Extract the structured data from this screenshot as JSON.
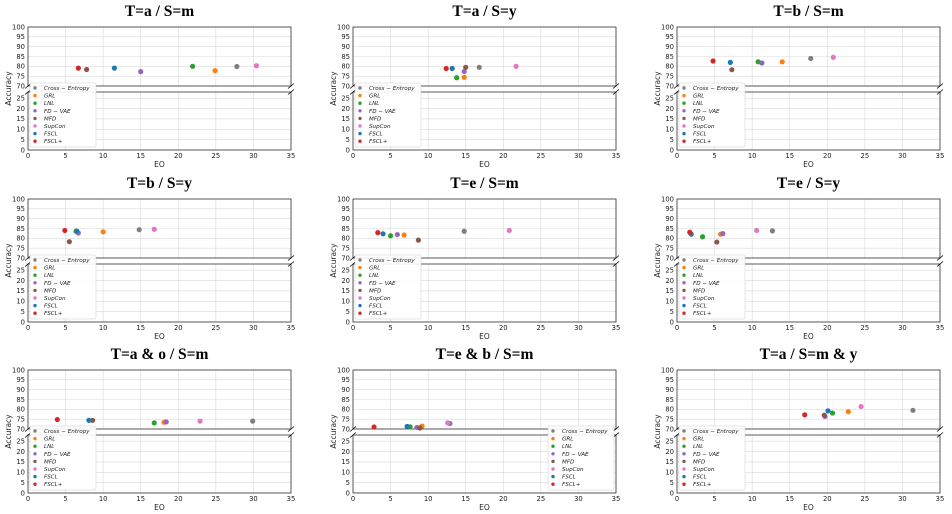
{
  "chart_data": [
    {
      "type": "scatter",
      "title": "T=a / S=m",
      "xlabel": "EO",
      "ylabel": "Accuracy",
      "xlim": [
        0,
        35
      ],
      "xticks": [
        "0",
        "5",
        "10",
        "15",
        "20",
        "25",
        "30",
        "35"
      ],
      "ytick_upper": [
        "70",
        "75",
        "80",
        "85",
        "90",
        "95",
        "100"
      ],
      "ytick_lower": [
        "0",
        "5",
        "10",
        "15",
        "20",
        "25"
      ],
      "legend_position": "lower-left",
      "points": [
        {
          "name": "Cross-Entropy",
          "eo": 27.8,
          "acc": 79.9
        },
        {
          "name": "GRL",
          "eo": 24.9,
          "acc": 77.8
        },
        {
          "name": "LNL",
          "eo": 21.9,
          "acc": 80.0
        },
        {
          "name": "FD-VAE",
          "eo": 15.0,
          "acc": 77.3
        },
        {
          "name": "MFD",
          "eo": 7.8,
          "acc": 78.4
        },
        {
          "name": "SupCon",
          "eo": 30.4,
          "acc": 80.3
        },
        {
          "name": "FSCL",
          "eo": 11.5,
          "acc": 79.1
        },
        {
          "name": "FSCL+",
          "eo": 6.7,
          "acc": 79.1
        }
      ]
    },
    {
      "type": "scatter",
      "title": "T=a / S=y",
      "xlabel": "EO",
      "ylabel": "Accuracy",
      "xlim": [
        0,
        35
      ],
      "xticks": [
        "0",
        "5",
        "10",
        "15",
        "20",
        "25",
        "30",
        "35"
      ],
      "ytick_upper": [
        "70",
        "75",
        "80",
        "85",
        "90",
        "95",
        "100"
      ],
      "ytick_lower": [
        "0",
        "5",
        "10",
        "15",
        "20",
        "25"
      ],
      "legend_position": "lower-left",
      "points": [
        {
          "name": "Cross-Entropy",
          "eo": 16.8,
          "acc": 79.5
        },
        {
          "name": "GRL",
          "eo": 14.8,
          "acc": 74.4
        },
        {
          "name": "LNL",
          "eo": 13.8,
          "acc": 74.2
        },
        {
          "name": "FD-VAE",
          "eo": 14.8,
          "acc": 77.4
        },
        {
          "name": "MFD",
          "eo": 15.0,
          "acc": 79.5
        },
        {
          "name": "SupCon",
          "eo": 21.7,
          "acc": 80.0
        },
        {
          "name": "FSCL",
          "eo": 13.2,
          "acc": 78.9
        },
        {
          "name": "FSCL+",
          "eo": 12.4,
          "acc": 78.9
        }
      ]
    },
    {
      "type": "scatter",
      "title": "T=b / S=m",
      "xlabel": "EO",
      "ylabel": "Accuracy",
      "xlim": [
        0,
        35
      ],
      "xticks": [
        "0",
        "5",
        "10",
        "15",
        "20",
        "25",
        "30",
        "35"
      ],
      "ytick_upper": [
        "70",
        "75",
        "80",
        "85",
        "90",
        "95",
        "100"
      ],
      "ytick_lower": [
        "0",
        "5",
        "10",
        "15",
        "20",
        "25"
      ],
      "legend_position": "lower-left",
      "points": [
        {
          "name": "Cross-Entropy",
          "eo": 17.8,
          "acc": 84.0
        },
        {
          "name": "GRL",
          "eo": 14.0,
          "acc": 82.3
        },
        {
          "name": "LNL",
          "eo": 10.8,
          "acc": 82.3
        },
        {
          "name": "FD-VAE",
          "eo": 11.3,
          "acc": 81.7
        },
        {
          "name": "MFD",
          "eo": 7.3,
          "acc": 78.3
        },
        {
          "name": "SupCon",
          "eo": 20.8,
          "acc": 84.6
        },
        {
          "name": "FSCL",
          "eo": 7.1,
          "acc": 82.0
        },
        {
          "name": "FSCL+",
          "eo": 4.8,
          "acc": 82.7
        }
      ]
    },
    {
      "type": "scatter",
      "title": "T=b / S=y",
      "xlabel": "EO",
      "ylabel": "Accuracy",
      "xlim": [
        0,
        35
      ],
      "xticks": [
        "0",
        "5",
        "10",
        "15",
        "20",
        "25",
        "30",
        "35"
      ],
      "ytick_upper": [
        "70",
        "75",
        "80",
        "85",
        "90",
        "95",
        "100"
      ],
      "ytick_lower": [
        "0",
        "5",
        "10",
        "15",
        "20",
        "25"
      ],
      "legend_position": "lower-left",
      "points": [
        {
          "name": "Cross-Entropy",
          "eo": 14.8,
          "acc": 84.4
        },
        {
          "name": "GRL",
          "eo": 10.0,
          "acc": 83.3
        },
        {
          "name": "LNL",
          "eo": 6.4,
          "acc": 83.6
        },
        {
          "name": "FD-VAE",
          "eo": 6.7,
          "acc": 82.7
        },
        {
          "name": "MFD",
          "eo": 5.5,
          "acc": 78.3
        },
        {
          "name": "SupCon",
          "eo": 16.8,
          "acc": 84.6
        },
        {
          "name": "FSCL",
          "eo": 6.5,
          "acc": 83.7
        },
        {
          "name": "FSCL+",
          "eo": 4.9,
          "acc": 84.0
        }
      ]
    },
    {
      "type": "scatter",
      "title": "T=e / S=m",
      "xlabel": "EO",
      "ylabel": "Accuracy",
      "xlim": [
        0,
        35
      ],
      "xticks": [
        "0",
        "5",
        "10",
        "15",
        "20",
        "25",
        "30",
        "35"
      ],
      "ytick_upper": [
        "70",
        "75",
        "80",
        "85",
        "90",
        "95",
        "100"
      ],
      "ytick_lower": [
        "0",
        "5",
        "10",
        "15",
        "20",
        "25"
      ],
      "legend_position": "lower-left",
      "points": [
        {
          "name": "Cross-Entropy",
          "eo": 14.8,
          "acc": 83.6
        },
        {
          "name": "GRL",
          "eo": 6.8,
          "acc": 81.7
        },
        {
          "name": "LNL",
          "eo": 5.0,
          "acc": 81.3
        },
        {
          "name": "FD-VAE",
          "eo": 5.9,
          "acc": 81.9
        },
        {
          "name": "MFD",
          "eo": 8.7,
          "acc": 79.1
        },
        {
          "name": "SupCon",
          "eo": 20.8,
          "acc": 84.0
        },
        {
          "name": "FSCL",
          "eo": 4.0,
          "acc": 82.3
        },
        {
          "name": "FSCL+",
          "eo": 3.3,
          "acc": 82.9
        }
      ]
    },
    {
      "type": "scatter",
      "title": "T=e / S=y",
      "xlabel": "EO",
      "ylabel": "Accuracy",
      "xlim": [
        0,
        35
      ],
      "xticks": [
        "0",
        "5",
        "10",
        "15",
        "20",
        "25",
        "30",
        "35"
      ],
      "ytick_upper": [
        "70",
        "75",
        "80",
        "85",
        "90",
        "95",
        "100"
      ],
      "ytick_lower": [
        "0",
        "5",
        "10",
        "15",
        "20",
        "25"
      ],
      "legend_position": "lower-left",
      "points": [
        {
          "name": "Cross-Entropy",
          "eo": 12.7,
          "acc": 83.8
        },
        {
          "name": "GRL",
          "eo": 5.8,
          "acc": 82.1
        },
        {
          "name": "LNL",
          "eo": 3.4,
          "acc": 80.8
        },
        {
          "name": "FD-VAE",
          "eo": 6.1,
          "acc": 82.4
        },
        {
          "name": "MFD",
          "eo": 5.3,
          "acc": 78.1
        },
        {
          "name": "SupCon",
          "eo": 10.6,
          "acc": 84.0
        },
        {
          "name": "FSCL",
          "eo": 1.9,
          "acc": 82.1
        },
        {
          "name": "FSCL+",
          "eo": 1.7,
          "acc": 83.1
        }
      ]
    },
    {
      "type": "scatter",
      "title": "T=a & o / S=m",
      "xlabel": "EO",
      "ylabel": "Accuracy",
      "xlim": [
        0,
        35
      ],
      "xticks": [
        "0",
        "5",
        "10",
        "15",
        "20",
        "25",
        "30",
        "35"
      ],
      "ytick_upper": [
        "70",
        "75",
        "80",
        "85",
        "90",
        "95",
        "100"
      ],
      "ytick_lower": [
        "0",
        "5",
        "10",
        "15",
        "20",
        "25"
      ],
      "legend_position": "lower-left",
      "points": [
        {
          "name": "Cross-Entropy",
          "eo": 29.9,
          "acc": 74.0
        },
        {
          "name": "GRL",
          "eo": 18.1,
          "acc": 73.4
        },
        {
          "name": "LNL",
          "eo": 16.8,
          "acc": 73.1
        },
        {
          "name": "FD-VAE",
          "eo": 18.4,
          "acc": 73.6
        },
        {
          "name": "MFD",
          "eo": 8.6,
          "acc": 74.4
        },
        {
          "name": "SupCon",
          "eo": 22.9,
          "acc": 74.0
        },
        {
          "name": "FSCL",
          "eo": 8.1,
          "acc": 74.4
        },
        {
          "name": "FSCL+",
          "eo": 3.9,
          "acc": 74.8
        }
      ]
    },
    {
      "type": "scatter",
      "title": "T=e & b / S=m",
      "xlabel": "EO",
      "ylabel": "Accuracy",
      "xlim": [
        0,
        35
      ],
      "xticks": [
        "0",
        "5",
        "10",
        "15",
        "20",
        "25",
        "30",
        "35"
      ],
      "ytick_upper": [
        "70",
        "75",
        "80",
        "85",
        "90",
        "95",
        "100"
      ],
      "ytick_lower": [
        "0",
        "5",
        "10",
        "15",
        "20",
        "25"
      ],
      "legend_position": "lower-right",
      "points": [
        {
          "name": "Cross-Entropy",
          "eo": 12.9,
          "acc": 72.8
        },
        {
          "name": "GRL",
          "eo": 9.2,
          "acc": 71.5
        },
        {
          "name": "LNL",
          "eo": 7.6,
          "acc": 71.1
        },
        {
          "name": "FD-VAE",
          "eo": 8.5,
          "acc": 70.8
        },
        {
          "name": "MFD",
          "eo": 8.9,
          "acc": 70.5
        },
        {
          "name": "SupCon",
          "eo": 12.6,
          "acc": 73.1
        },
        {
          "name": "FSCL",
          "eo": 7.2,
          "acc": 71.3
        },
        {
          "name": "FSCL+",
          "eo": 2.8,
          "acc": 71.0
        }
      ]
    },
    {
      "type": "scatter",
      "title": "T=a / S=m & y",
      "xlabel": "EO",
      "ylabel": "Accuracy",
      "xlim": [
        0,
        35
      ],
      "xticks": [
        "0",
        "5",
        "10",
        "15",
        "20",
        "25",
        "30",
        "35"
      ],
      "ytick_upper": [
        "70",
        "75",
        "80",
        "85",
        "90",
        "95",
        "100"
      ],
      "ytick_lower": [
        "0",
        "5",
        "10",
        "15",
        "20",
        "25"
      ],
      "legend_position": "lower-left",
      "points": [
        {
          "name": "Cross-Entropy",
          "eo": 31.4,
          "acc": 79.5
        },
        {
          "name": "GRL",
          "eo": 22.8,
          "acc": 78.8
        },
        {
          "name": "LNL",
          "eo": 20.7,
          "acc": 78.1
        },
        {
          "name": "FD-VAE",
          "eo": 19.7,
          "acc": 76.4
        },
        {
          "name": "MFD",
          "eo": 19.6,
          "acc": 77.0
        },
        {
          "name": "SupCon",
          "eo": 24.5,
          "acc": 81.4
        },
        {
          "name": "FSCL",
          "eo": 20.1,
          "acc": 79.2
        },
        {
          "name": "FSCL+",
          "eo": 17.0,
          "acc": 77.2
        }
      ]
    }
  ],
  "legend": {
    "labels": [
      "Cross − Entropy",
      "GRL",
      "LNL",
      "FD − VAE",
      "MFD",
      "SupCon",
      "FSCL",
      "FSCL+"
    ],
    "colors": [
      "#7f7f7f",
      "#ff7f0e",
      "#2ca02c",
      "#9467bd",
      "#8c564b",
      "#e377c2",
      "#1f77b4",
      "#d62728"
    ]
  }
}
